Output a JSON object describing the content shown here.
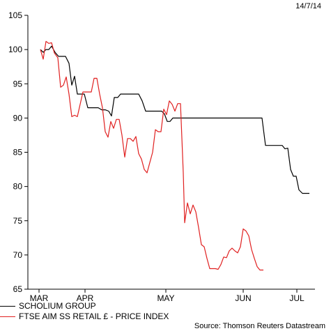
{
  "date": "14/7/14",
  "source": "Source: Thomson Reuters Datastream",
  "chart_data": {
    "type": "line",
    "ylim": [
      65,
      105
    ],
    "yticks": [
      65,
      70,
      75,
      80,
      85,
      90,
      95,
      100,
      105
    ],
    "xlim": [
      0,
      392
    ],
    "xticks": [
      {
        "label": "MAR",
        "x": 0
      },
      {
        "label": "APR",
        "x": 66
      },
      {
        "label": "MAY",
        "x": 182
      },
      {
        "label": "JUN",
        "x": 293
      },
      {
        "label": "JUL",
        "x": 370
      }
    ],
    "grid": false,
    "legend_position": "bottom-left",
    "series": [
      {
        "name": "SCHOLIUM GROUP",
        "color": "#000000",
        "points": [
          [
            2,
            100
          ],
          [
            6,
            99.6
          ],
          [
            10,
            100
          ],
          [
            14,
            100
          ],
          [
            18,
            100.5
          ],
          [
            23,
            99.6
          ],
          [
            28,
            99
          ],
          [
            33,
            99
          ],
          [
            38,
            99
          ],
          [
            43,
            98
          ],
          [
            47,
            94.8
          ],
          [
            51,
            96.1
          ],
          [
            55,
            93.5
          ],
          [
            60,
            93.5
          ],
          [
            65,
            93.5
          ],
          [
            70,
            91.5
          ],
          [
            75,
            91.5
          ],
          [
            80,
            91.5
          ],
          [
            85,
            91.5
          ],
          [
            90,
            91.2
          ],
          [
            95,
            91.2
          ],
          [
            100,
            91
          ],
          [
            104,
            90.3
          ],
          [
            108,
            93
          ],
          [
            113,
            93
          ],
          [
            117,
            93.5
          ],
          [
            122,
            93.5
          ],
          [
            127,
            93.5
          ],
          [
            132,
            93.5
          ],
          [
            137,
            93.5
          ],
          [
            143,
            93.5
          ],
          [
            148,
            92.5
          ],
          [
            153,
            91
          ],
          [
            158,
            91
          ],
          [
            164,
            91
          ],
          [
            170,
            91
          ],
          [
            176,
            91
          ],
          [
            180,
            90.6
          ],
          [
            184,
            89.5
          ],
          [
            188,
            89.5
          ],
          [
            192,
            90
          ],
          [
            198,
            90
          ],
          [
            205,
            90
          ],
          [
            215,
            90
          ],
          [
            230,
            90
          ],
          [
            245,
            90
          ],
          [
            260,
            90
          ],
          [
            275,
            90
          ],
          [
            290,
            90
          ],
          [
            305,
            90
          ],
          [
            315,
            90
          ],
          [
            320,
            90
          ],
          [
            325,
            86
          ],
          [
            330,
            86
          ],
          [
            335,
            86
          ],
          [
            340,
            86
          ],
          [
            345,
            86
          ],
          [
            349,
            86
          ],
          [
            353,
            85.5
          ],
          [
            357,
            85.6
          ],
          [
            361,
            82.5
          ],
          [
            365,
            81.5
          ],
          [
            369,
            81.5
          ],
          [
            373,
            79.5
          ],
          [
            378,
            79
          ],
          [
            383,
            79
          ],
          [
            388,
            79
          ]
        ]
      },
      {
        "name": "FTSE AIM SS RETAIL £ - PRICE INDEX",
        "color": "#e02020",
        "points": [
          [
            2,
            100
          ],
          [
            6,
            98.6
          ],
          [
            10,
            101.2
          ],
          [
            14,
            100.9
          ],
          [
            18,
            101
          ],
          [
            22,
            99.5
          ],
          [
            27,
            98.8
          ],
          [
            31,
            94.5
          ],
          [
            35,
            94.8
          ],
          [
            39,
            96
          ],
          [
            43,
            93.5
          ],
          [
            47,
            90.2
          ],
          [
            51,
            90.4
          ],
          [
            55,
            90.2
          ],
          [
            59,
            92
          ],
          [
            63,
            93.8
          ],
          [
            67,
            93.8
          ],
          [
            71,
            93.8
          ],
          [
            75,
            93.8
          ],
          [
            79,
            95.8
          ],
          [
            83,
            95.8
          ],
          [
            87,
            93.5
          ],
          [
            91,
            91.5
          ],
          [
            95,
            88
          ],
          [
            99,
            87.2
          ],
          [
            103,
            89.5
          ],
          [
            107,
            88.5
          ],
          [
            111,
            89.8
          ],
          [
            115,
            89.8
          ],
          [
            119,
            87.5
          ],
          [
            123,
            84.3
          ],
          [
            127,
            87
          ],
          [
            131,
            87
          ],
          [
            135,
            86.6
          ],
          [
            139,
            87.3
          ],
          [
            143,
            84.8
          ],
          [
            147,
            84
          ],
          [
            151,
            82.5
          ],
          [
            155,
            82
          ],
          [
            159,
            83.5
          ],
          [
            163,
            85
          ],
          [
            167,
            88.3
          ],
          [
            171,
            88
          ],
          [
            175,
            88
          ],
          [
            179,
            91.3
          ],
          [
            183,
            90.5
          ],
          [
            187,
            92.5
          ],
          [
            191,
            92
          ],
          [
            195,
            91
          ],
          [
            199,
            92.1
          ],
          [
            203,
            92.1
          ],
          [
            207,
            82
          ],
          [
            209,
            74.7
          ],
          [
            213,
            77.6
          ],
          [
            217,
            76
          ],
          [
            221,
            77.3
          ],
          [
            225,
            76.3
          ],
          [
            229,
            74
          ],
          [
            233,
            71.5
          ],
          [
            237,
            71.2
          ],
          [
            241,
            69.5
          ],
          [
            245,
            68
          ],
          [
            249,
            68
          ],
          [
            253,
            68
          ],
          [
            257,
            67.9
          ],
          [
            261,
            68.6
          ],
          [
            265,
            69.7
          ],
          [
            269,
            69.6
          ],
          [
            273,
            70.6
          ],
          [
            277,
            71
          ],
          [
            281,
            70.6
          ],
          [
            285,
            70.3
          ],
          [
            289,
            71.2
          ],
          [
            293,
            73.8
          ],
          [
            297,
            73.5
          ],
          [
            301,
            72.8
          ],
          [
            305,
            70.8
          ],
          [
            309,
            69.5
          ],
          [
            313,
            68.3
          ],
          [
            317,
            67.8
          ],
          [
            322,
            67.8
          ]
        ]
      }
    ]
  }
}
